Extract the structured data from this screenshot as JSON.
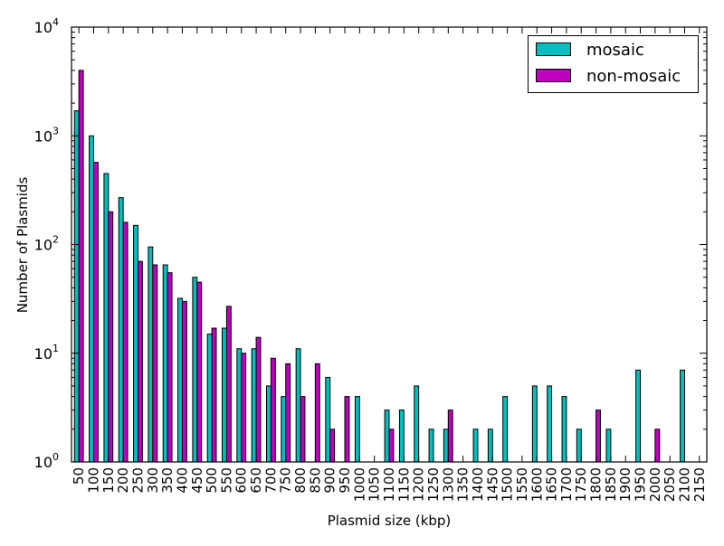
{
  "chart_data": {
    "type": "bar",
    "title": "",
    "xlabel": "Plasmid size (kbp)",
    "ylabel": "Number of Plasmids",
    "yscale": "log",
    "ylim": [
      1,
      10000
    ],
    "y_ticks": [
      {
        "base": "10",
        "exp": "0",
        "value": 1
      },
      {
        "base": "10",
        "exp": "1",
        "value": 10
      },
      {
        "base": "10",
        "exp": "2",
        "value": 100
      },
      {
        "base": "10",
        "exp": "3",
        "value": 1000
      },
      {
        "base": "10",
        "exp": "4",
        "value": 10000
      }
    ],
    "legend_position": "top-right",
    "categories": [
      "50",
      "100",
      "150",
      "200",
      "250",
      "300",
      "350",
      "400",
      "450",
      "500",
      "550",
      "600",
      "650",
      "700",
      "750",
      "800",
      "850",
      "900",
      "950",
      "1000",
      "1050",
      "1100",
      "1150",
      "1200",
      "1250",
      "1300",
      "1350",
      "1400",
      "1450",
      "1500",
      "1550",
      "1600",
      "1650",
      "1700",
      "1750",
      "1800",
      "1850",
      "1900",
      "1950",
      "2000",
      "2050",
      "2100",
      "2150"
    ],
    "series": [
      {
        "name": "mosaic",
        "color": "#00bfbf",
        "values": [
          1700,
          1000,
          450,
          270,
          150,
          95,
          65,
          32,
          50,
          15,
          17,
          11,
          11,
          5,
          4,
          11,
          null,
          6,
          null,
          4,
          null,
          3,
          3,
          5,
          2,
          2,
          null,
          2,
          2,
          4,
          null,
          5,
          5,
          4,
          2,
          null,
          2,
          null,
          7,
          null,
          null,
          7,
          null
        ]
      },
      {
        "name": "non-mosaic",
        "color": "#bf00bf",
        "values": [
          4000,
          570,
          200,
          160,
          70,
          65,
          55,
          30,
          45,
          17,
          27,
          10,
          14,
          9,
          8,
          4,
          8,
          2,
          4,
          null,
          null,
          2,
          null,
          null,
          null,
          3,
          null,
          null,
          null,
          null,
          null,
          null,
          null,
          null,
          null,
          3,
          null,
          null,
          null,
          2,
          null,
          null,
          null
        ]
      }
    ]
  }
}
